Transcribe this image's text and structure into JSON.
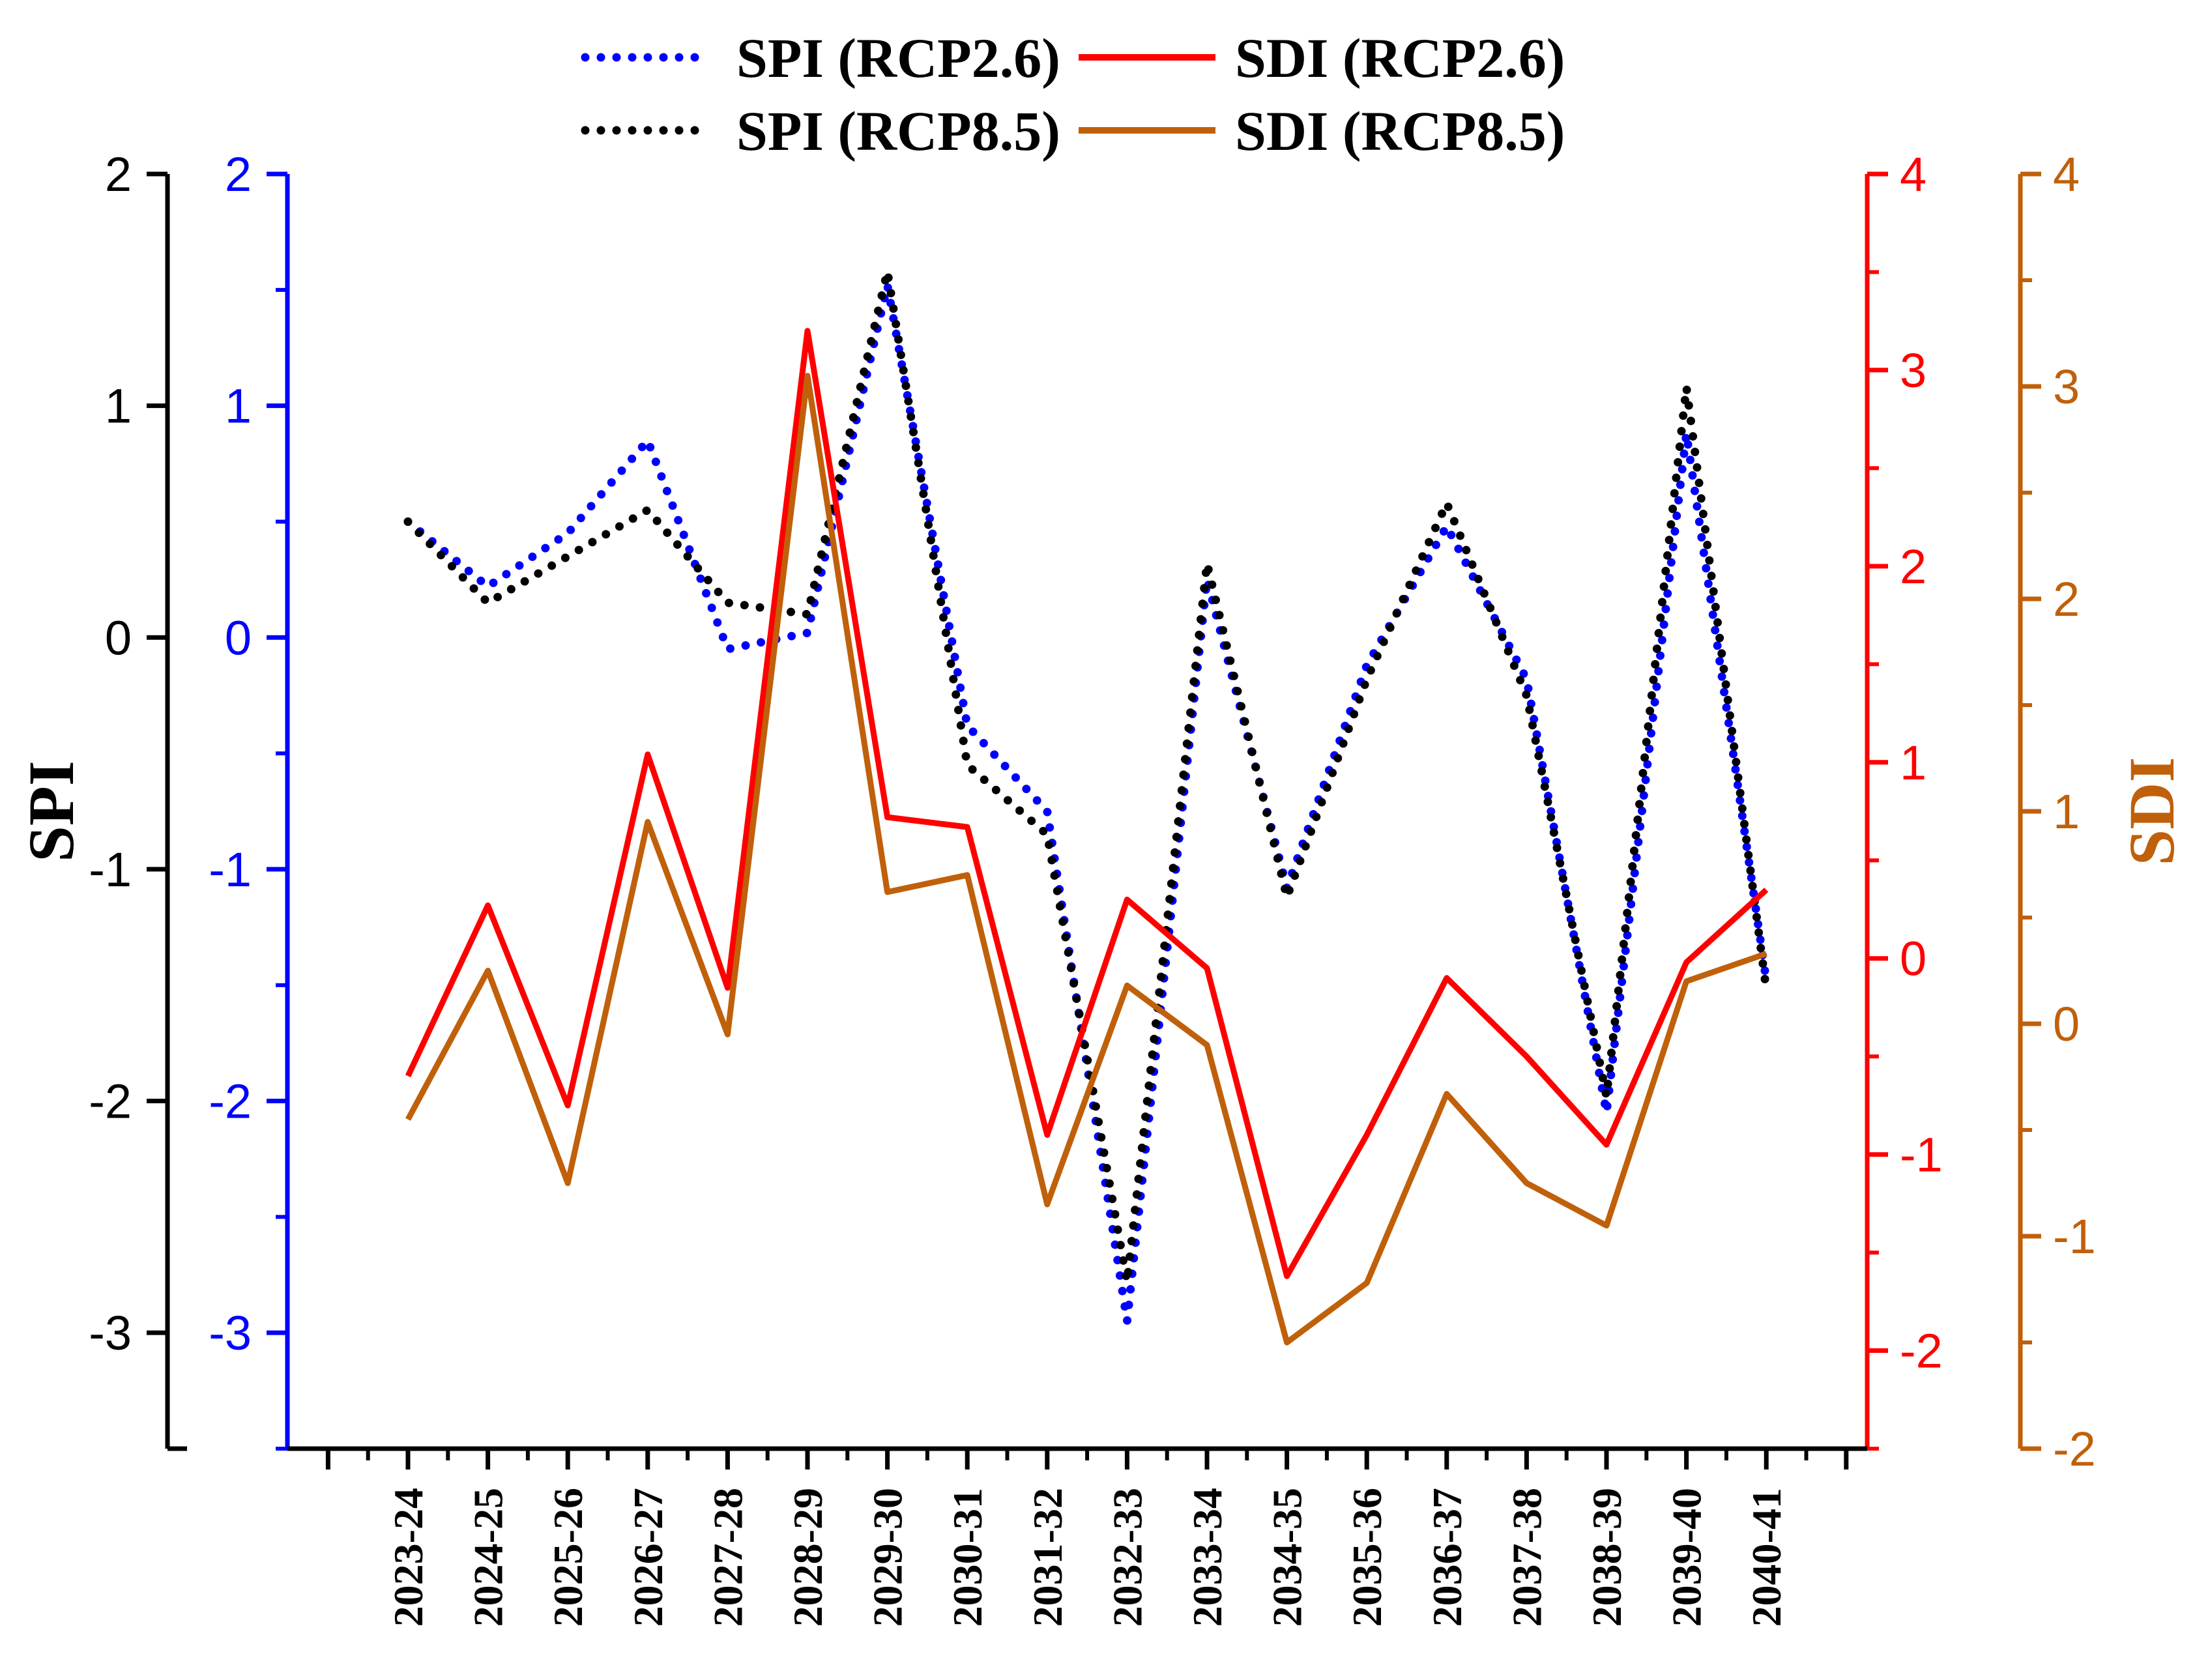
{
  "chart_data": {
    "type": "line",
    "title": "",
    "xlabel": "",
    "categories": [
      "2023-24",
      "2024-25",
      "2025-26",
      "2026-27",
      "2027-28",
      "2028-29",
      "2029-30",
      "2030-31",
      "2031-32",
      "2032-33",
      "2033-34",
      "2034-35",
      "2035-36",
      "2036-37",
      "2037-38",
      "2038-39",
      "2039-40",
      "2040-41"
    ],
    "axes": {
      "spi_outer": {
        "label": "SPI",
        "color": "#000000",
        "ylim": [
          -3.5,
          2
        ],
        "ticks": [
          "2",
          "1",
          "0",
          "-1",
          "-2",
          "-3"
        ]
      },
      "spi_inner": {
        "label": "",
        "color": "#0000ff",
        "ylim": [
          -3.5,
          2
        ],
        "ticks": [
          "2",
          "1",
          "0",
          "-1",
          "-2",
          "-3"
        ]
      },
      "sdi_red": {
        "label": "",
        "color": "#ff0000",
        "ylim": [
          -2.5,
          4
        ],
        "ticks": [
          "4",
          "3",
          "2",
          "1",
          "0",
          "-1",
          "-2"
        ]
      },
      "sdi_brown": {
        "label": "SDI",
        "color": "#c0600a",
        "ylim": [
          -2,
          4
        ],
        "ticks": [
          "4",
          "3",
          "2",
          "1",
          "0",
          "-1",
          "-2"
        ]
      }
    },
    "series": [
      {
        "name": "SPI (RCP2.6)",
        "axis": "spi_inner",
        "color": "#0000ff",
        "style": "dotted",
        "values": [
          0.5,
          0.22,
          0.45,
          0.85,
          -0.05,
          0.02,
          1.52,
          -0.38,
          -0.75,
          -2.95,
          0.25,
          -1.08,
          -0.12,
          0.48,
          -0.18,
          -2.05,
          0.88,
          -1.48
        ]
      },
      {
        "name": "SPI (RCP8.5)",
        "axis": "spi_outer",
        "color": "#000000",
        "style": "dotted",
        "values": [
          0.5,
          0.15,
          0.35,
          0.55,
          0.15,
          0.1,
          1.58,
          -0.55,
          -0.85,
          -2.78,
          0.32,
          -1.12,
          -0.18,
          0.58,
          -0.25,
          -1.98,
          1.08,
          -1.52
        ]
      },
      {
        "name": "SDI (RCP2.6)",
        "axis": "sdi_red",
        "color": "#ff0000",
        "style": "solid",
        "values": [
          -0.6,
          0.27,
          -0.75,
          1.04,
          -0.15,
          3.2,
          0.72,
          0.67,
          -0.9,
          0.3,
          -0.05,
          -1.62,
          -0.9,
          -0.1,
          -0.5,
          -0.95,
          -0.02,
          0.35
        ]
      },
      {
        "name": "SDI (RCP8.5)",
        "axis": "sdi_brown",
        "color": "#c0600a",
        "style": "solid",
        "values": [
          -0.45,
          0.25,
          -0.75,
          0.95,
          -0.05,
          3.05,
          0.62,
          0.7,
          -0.85,
          0.18,
          -0.1,
          -1.5,
          -1.22,
          -0.33,
          -0.75,
          -0.95,
          0.2,
          0.33
        ]
      }
    ],
    "legend": [
      {
        "label": "SPI (RCP2.6)",
        "color": "#0000ff",
        "style": "dotted"
      },
      {
        "label": "SDI (RCP2.6)",
        "color": "#ff0000",
        "style": "solid"
      },
      {
        "label": "SPI (RCP8.5)",
        "color": "#000000",
        "style": "dotted"
      },
      {
        "label": "SDI (RCP8.5)",
        "color": "#c0600a",
        "style": "solid"
      }
    ],
    "legend_position": "top-center"
  }
}
